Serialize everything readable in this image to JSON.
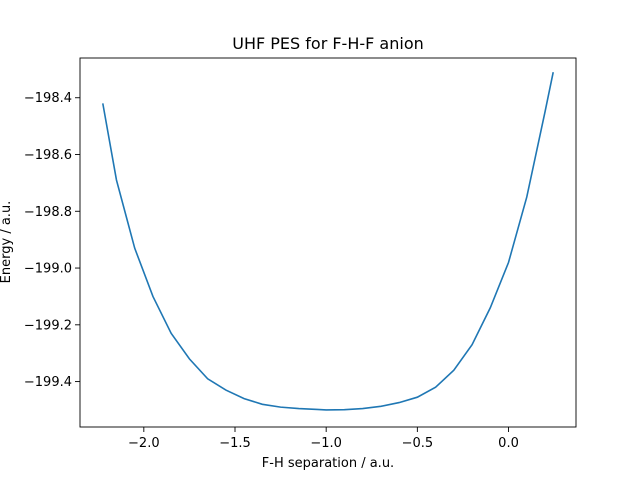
{
  "chart_data": {
    "type": "line",
    "title": "UHF PES for F-H-F anion",
    "xlabel": "F-H separation / a.u.",
    "ylabel": "Energy / a.u.",
    "xlim": [
      -2.35,
      0.37
    ],
    "ylim": [
      -199.56,
      -198.26
    ],
    "grid": false,
    "x_ticks": [
      -2.0,
      -1.5,
      -1.0,
      -0.5,
      0.0
    ],
    "x_tick_labels": [
      "−2.0",
      "−1.5",
      "−1.0",
      "−0.5",
      "0.0"
    ],
    "y_ticks": [
      -199.4,
      -199.2,
      -199.0,
      -198.8,
      -198.6,
      -198.4
    ],
    "y_tick_labels": [
      "−199.4",
      "−199.2",
      "−199.0",
      "−198.8",
      "−198.6",
      "−198.4"
    ],
    "series": [
      {
        "color": "#1f77b4",
        "x": [
          -2.225,
          -2.15,
          -2.05,
          -1.95,
          -1.85,
          -1.75,
          -1.65,
          -1.55,
          -1.45,
          -1.35,
          -1.25,
          -1.15,
          -1.05,
          -1.0,
          -0.9,
          -0.8,
          -0.7,
          -0.6,
          -0.5,
          -0.4,
          -0.3,
          -0.2,
          -0.1,
          0.0,
          0.1,
          0.2,
          0.245
        ],
        "y": [
          -198.42,
          -198.69,
          -198.93,
          -199.1,
          -199.23,
          -199.32,
          -199.39,
          -199.43,
          -199.46,
          -199.48,
          -199.49,
          -199.495,
          -199.498,
          -199.5,
          -199.499,
          -199.495,
          -199.487,
          -199.474,
          -199.455,
          -199.42,
          -199.36,
          -199.27,
          -199.14,
          -198.98,
          -198.75,
          -198.45,
          -198.31
        ]
      }
    ]
  }
}
